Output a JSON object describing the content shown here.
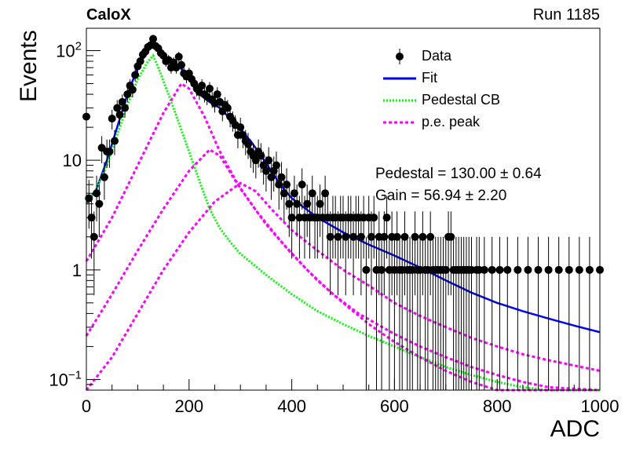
{
  "header": {
    "brand": "CaloX",
    "run": "Run 1185"
  },
  "stats": [
    "Pedestal = 130.00 ± 0.64",
    "Gain = 56.94 ± 2.20"
  ],
  "colors": {
    "data": "#000000",
    "fit": "#0000ff",
    "pedestal": "#00ff00",
    "pe": "#ff00ff",
    "frame": "#000000"
  },
  "chart_data": {
    "type": "scatter",
    "xlabel": "ADC",
    "ylabel": "Events",
    "xlim": [
      0,
      1000
    ],
    "ylim": [
      0.08,
      160
    ],
    "yscale": "log",
    "grid": false,
    "legend_position": "top-right",
    "x_ticks": [
      0,
      200,
      400,
      600,
      800,
      1000
    ],
    "y_ticks": [
      {
        "value": 0.1,
        "label": "10",
        "sup": "−1"
      },
      {
        "value": 1,
        "label": "1",
        "sup": ""
      },
      {
        "value": 10,
        "label": "10",
        "sup": ""
      },
      {
        "value": 100,
        "label": "10",
        "sup": "2"
      }
    ],
    "legend": [
      {
        "label": "Data",
        "kind": "marker",
        "color": "#000000"
      },
      {
        "label": "Fit",
        "kind": "solid",
        "color": "#0000ff"
      },
      {
        "label": "Pedestal CB",
        "kind": "dotted",
        "color": "#00ff00"
      },
      {
        "label": "p.e. peak",
        "kind": "dashed",
        "color": "#ff00ff"
      }
    ],
    "data_points": [
      [
        0,
        25
      ],
      [
        5,
        4.5
      ],
      [
        10,
        3
      ],
      [
        15,
        2
      ],
      [
        20,
        5
      ],
      [
        25,
        4
      ],
      [
        30,
        13
      ],
      [
        35,
        7
      ],
      [
        40,
        12
      ],
      [
        45,
        12
      ],
      [
        50,
        24
      ],
      [
        55,
        15
      ],
      [
        60,
        30
      ],
      [
        65,
        26
      ],
      [
        70,
        34
      ],
      [
        75,
        30
      ],
      [
        80,
        40
      ],
      [
        85,
        48
      ],
      [
        90,
        44
      ],
      [
        95,
        60
      ],
      [
        100,
        72
      ],
      [
        105,
        80
      ],
      [
        110,
        92
      ],
      [
        115,
        98
      ],
      [
        120,
        108
      ],
      [
        125,
        112
      ],
      [
        130,
        128
      ],
      [
        135,
        110
      ],
      [
        140,
        105
      ],
      [
        145,
        95
      ],
      [
        150,
        90
      ],
      [
        155,
        80
      ],
      [
        160,
        82
      ],
      [
        165,
        70
      ],
      [
        170,
        78
      ],
      [
        175,
        70
      ],
      [
        180,
        88
      ],
      [
        185,
        74
      ],
      [
        190,
        62
      ],
      [
        195,
        58
      ],
      [
        200,
        62
      ],
      [
        205,
        55
      ],
      [
        210,
        50
      ],
      [
        215,
        45
      ],
      [
        220,
        42
      ],
      [
        225,
        48
      ],
      [
        230,
        40
      ],
      [
        235,
        38
      ],
      [
        240,
        45
      ],
      [
        245,
        36
      ],
      [
        250,
        33
      ],
      [
        255,
        40
      ],
      [
        260,
        34
      ],
      [
        265,
        28
      ],
      [
        270,
        32
      ],
      [
        275,
        30
      ],
      [
        280,
        25
      ],
      [
        285,
        23
      ],
      [
        290,
        21
      ],
      [
        295,
        17
      ],
      [
        300,
        20
      ],
      [
        305,
        17
      ],
      [
        310,
        15
      ],
      [
        315,
        14
      ],
      [
        320,
        12
      ],
      [
        325,
        11
      ],
      [
        330,
        10
      ],
      [
        335,
        12
      ],
      [
        340,
        11
      ],
      [
        345,
        9
      ],
      [
        350,
        8
      ],
      [
        355,
        10
      ],
      [
        360,
        7
      ],
      [
        365,
        8
      ],
      [
        370,
        9
      ],
      [
        375,
        6
      ],
      [
        380,
        7
      ],
      [
        385,
        5
      ],
      [
        390,
        6
      ],
      [
        395,
        4
      ],
      [
        400,
        3
      ],
      [
        405,
        5
      ],
      [
        410,
        4
      ],
      [
        415,
        3
      ],
      [
        420,
        6
      ],
      [
        425,
        3
      ],
      [
        430,
        4
      ],
      [
        435,
        3
      ],
      [
        440,
        5
      ],
      [
        445,
        3
      ],
      [
        450,
        3
      ],
      [
        455,
        4
      ],
      [
        460,
        3
      ],
      [
        465,
        5
      ],
      [
        470,
        3
      ],
      [
        475,
        2
      ],
      [
        480,
        3
      ],
      [
        485,
        3
      ],
      [
        490,
        2
      ],
      [
        495,
        3
      ],
      [
        500,
        3
      ],
      [
        505,
        2
      ],
      [
        510,
        3
      ],
      [
        515,
        3
      ],
      [
        520,
        2
      ],
      [
        525,
        3
      ],
      [
        530,
        3
      ],
      [
        535,
        2
      ],
      [
        540,
        3
      ],
      [
        545,
        1
      ],
      [
        550,
        3
      ],
      [
        555,
        2
      ],
      [
        560,
        3
      ],
      [
        565,
        1
      ],
      [
        570,
        2
      ],
      [
        575,
        1
      ],
      [
        580,
        2
      ],
      [
        585,
        3
      ],
      [
        590,
        1
      ],
      [
        595,
        2
      ],
      [
        600,
        1
      ],
      [
        605,
        2
      ],
      [
        610,
        1
      ],
      [
        615,
        1
      ],
      [
        620,
        2
      ],
      [
        625,
        1
      ],
      [
        630,
        1
      ],
      [
        635,
        1
      ],
      [
        640,
        2
      ],
      [
        645,
        1
      ],
      [
        650,
        1
      ],
      [
        655,
        2
      ],
      [
        660,
        1
      ],
      [
        665,
        1
      ],
      [
        670,
        2
      ],
      [
        675,
        1
      ],
      [
        680,
        1
      ],
      [
        685,
        1
      ],
      [
        690,
        1
      ],
      [
        695,
        1
      ],
      [
        700,
        1
      ],
      [
        705,
        2
      ],
      [
        710,
        2
      ],
      [
        715,
        1
      ],
      [
        720,
        1
      ],
      [
        725,
        1
      ],
      [
        730,
        1
      ],
      [
        735,
        1
      ],
      [
        740,
        1
      ],
      [
        745,
        1
      ],
      [
        750,
        1
      ],
      [
        760,
        1
      ],
      [
        765,
        1
      ],
      [
        775,
        1
      ],
      [
        790,
        1
      ],
      [
        805,
        1
      ],
      [
        820,
        1
      ],
      [
        840,
        1
      ],
      [
        860,
        1
      ],
      [
        880,
        1
      ],
      [
        900,
        1
      ],
      [
        920,
        1
      ],
      [
        940,
        1
      ],
      [
        960,
        1
      ],
      [
        980,
        1
      ],
      [
        1000,
        1
      ]
    ],
    "series": [
      {
        "name": "Fit",
        "style": "solid",
        "color": "#0000ff",
        "points": [
          [
            0,
            4
          ],
          [
            20,
            5.5
          ],
          [
            40,
            10
          ],
          [
            60,
            20
          ],
          [
            80,
            40
          ],
          [
            100,
            70
          ],
          [
            120,
            100
          ],
          [
            130,
            120
          ],
          [
            140,
            100
          ],
          [
            160,
            80
          ],
          [
            180,
            72
          ],
          [
            200,
            58
          ],
          [
            220,
            40
          ],
          [
            240,
            34
          ],
          [
            260,
            30
          ],
          [
            280,
            24
          ],
          [
            300,
            19
          ],
          [
            320,
            15
          ],
          [
            340,
            11
          ],
          [
            360,
            8
          ],
          [
            380,
            5.8
          ],
          [
            400,
            4.5
          ],
          [
            450,
            3
          ],
          [
            500,
            2.2
          ],
          [
            550,
            1.7
          ],
          [
            600,
            1.35
          ],
          [
            650,
            1.05
          ],
          [
            700,
            0.8
          ],
          [
            750,
            0.62
          ],
          [
            800,
            0.5
          ],
          [
            850,
            0.42
          ],
          [
            900,
            0.36
          ],
          [
            950,
            0.31
          ],
          [
            1000,
            0.27
          ]
        ]
      },
      {
        "name": "Pedestal CB",
        "style": "dotted",
        "color": "#00ff00",
        "points": [
          [
            0,
            4
          ],
          [
            20,
            5.5
          ],
          [
            40,
            9
          ],
          [
            60,
            17
          ],
          [
            80,
            32
          ],
          [
            100,
            55
          ],
          [
            120,
            80
          ],
          [
            130,
            90
          ],
          [
            140,
            70
          ],
          [
            160,
            40
          ],
          [
            180,
            22
          ],
          [
            200,
            12
          ],
          [
            220,
            6.5
          ],
          [
            240,
            3.6
          ],
          [
            260,
            2.4
          ],
          [
            280,
            1.8
          ],
          [
            300,
            1.4
          ],
          [
            350,
            0.9
          ],
          [
            400,
            0.6
          ],
          [
            450,
            0.42
          ],
          [
            500,
            0.32
          ],
          [
            550,
            0.25
          ],
          [
            600,
            0.2
          ],
          [
            650,
            0.16
          ],
          [
            700,
            0.13
          ],
          [
            750,
            0.11
          ],
          [
            800,
            0.095
          ],
          [
            850,
            0.085
          ],
          [
            900,
            0.078
          ],
          [
            950,
            0.073
          ],
          [
            1000,
            0.07
          ]
        ]
      },
      {
        "name": "p.e. peak",
        "style": "dashed",
        "color": "#ff00ff",
        "points": [
          [
            0,
            1.2
          ],
          [
            50,
            3
          ],
          [
            100,
            9
          ],
          [
            150,
            27
          ],
          [
            185,
            50
          ],
          [
            200,
            45
          ],
          [
            230,
            25
          ],
          [
            260,
            12
          ],
          [
            300,
            5.5
          ],
          [
            350,
            2.6
          ],
          [
            400,
            1.4
          ],
          [
            450,
            0.8
          ],
          [
            500,
            0.5
          ],
          [
            550,
            0.32
          ],
          [
            600,
            0.22
          ],
          [
            650,
            0.16
          ],
          [
            700,
            0.12
          ],
          [
            750,
            0.095
          ],
          [
            800,
            0.08
          ],
          [
            850,
            0.072
          ],
          [
            900,
            0.066
          ],
          [
            1000,
            0.06
          ]
        ]
      },
      {
        "name": "p.e. peak",
        "style": "dashed",
        "color": "#ff00ff",
        "points": [
          [
            0,
            0.25
          ],
          [
            50,
            0.6
          ],
          [
            100,
            1.5
          ],
          [
            150,
            3.6
          ],
          [
            200,
            8
          ],
          [
            240,
            12.5
          ],
          [
            260,
            11
          ],
          [
            290,
            6.5
          ],
          [
            330,
            3.5
          ],
          [
            380,
            1.8
          ],
          [
            430,
            1.0
          ],
          [
            480,
            0.6
          ],
          [
            530,
            0.4
          ],
          [
            600,
            0.26
          ],
          [
            650,
            0.2
          ],
          [
            700,
            0.16
          ],
          [
            750,
            0.13
          ],
          [
            800,
            0.11
          ],
          [
            850,
            0.095
          ],
          [
            900,
            0.085
          ],
          [
            1000,
            0.075
          ]
        ]
      },
      {
        "name": "p.e. peak",
        "style": "dashed",
        "color": "#ff00ff",
        "points": [
          [
            0,
            0.07
          ],
          [
            50,
            0.16
          ],
          [
            100,
            0.4
          ],
          [
            150,
            1.0
          ],
          [
            200,
            2.2
          ],
          [
            250,
            4.2
          ],
          [
            300,
            6.2
          ],
          [
            330,
            5.2
          ],
          [
            360,
            3.6
          ],
          [
            400,
            2.3
          ],
          [
            450,
            1.5
          ],
          [
            500,
            1.0
          ],
          [
            550,
            0.72
          ],
          [
            600,
            0.5
          ],
          [
            650,
            0.38
          ],
          [
            700,
            0.3
          ],
          [
            750,
            0.24
          ],
          [
            800,
            0.2
          ],
          [
            850,
            0.17
          ],
          [
            900,
            0.15
          ],
          [
            1000,
            0.12
          ]
        ]
      }
    ]
  }
}
